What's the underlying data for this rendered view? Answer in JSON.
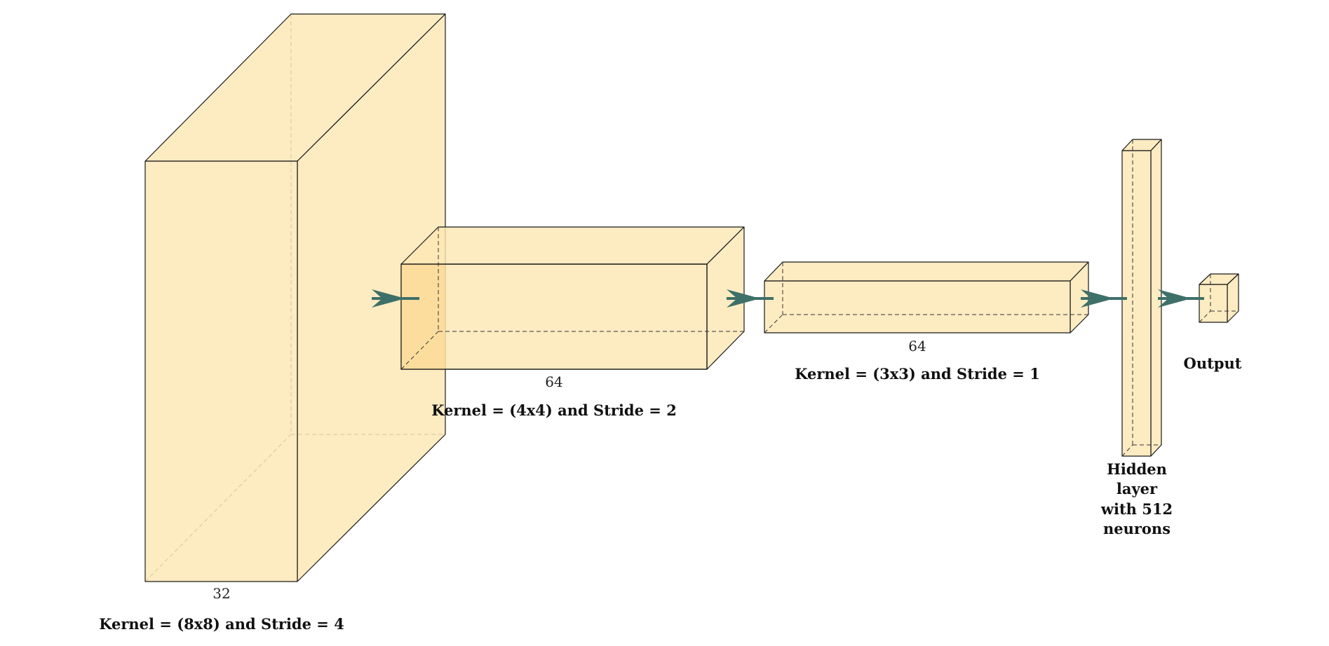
{
  "diagram": {
    "layers": [
      {
        "dim_label": "32",
        "caption": "Kernel = (8x8) and Stride = 4"
      },
      {
        "dim_label": "64",
        "caption": "Kernel = (4x4) and Stride = 2"
      },
      {
        "dim_label": "64",
        "caption": "Kernel = (3x3) and Stride = 1"
      },
      {
        "caption_lines": [
          "Hidden",
          "layer",
          "with 512",
          "neurons"
        ]
      },
      {
        "caption": "Output"
      }
    ],
    "colors": {
      "box_fill": "#fde6b3",
      "edge": "#1a1a1a",
      "arrow": "#3d7068"
    }
  }
}
